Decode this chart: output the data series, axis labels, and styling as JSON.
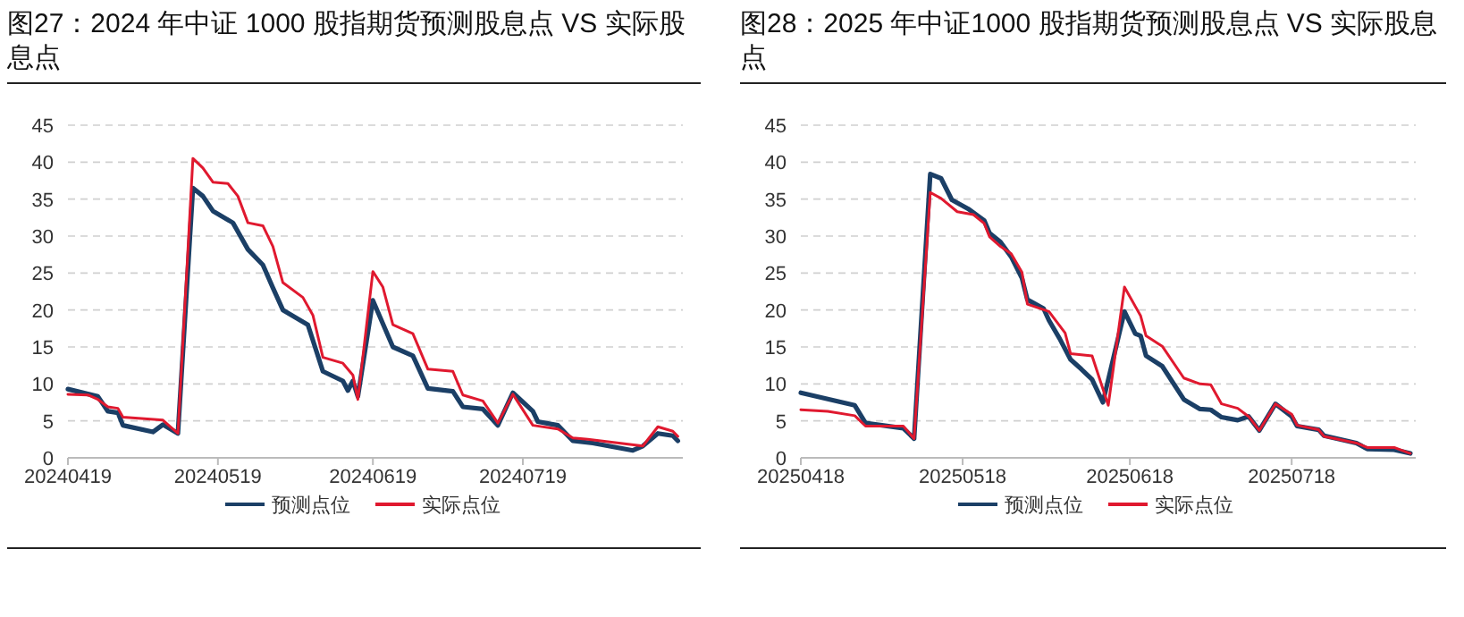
{
  "chart_data": [
    {
      "type": "line",
      "title": "图27：2024 年中证 1000 股指期货预测股息点 VS 实际股息点",
      "xlim": [
        "2024-04-19",
        "2024-08-20"
      ],
      "ylim": [
        0,
        45
      ],
      "yticks": [
        0,
        5,
        10,
        15,
        20,
        25,
        30,
        35,
        40,
        45
      ],
      "xticks": [
        {
          "value": "2024-04-19",
          "label": "20240419"
        },
        {
          "value": "2024-05-19",
          "label": "20240519"
        },
        {
          "value": "2024-06-19",
          "label": "20240619"
        },
        {
          "value": "2024-07-19",
          "label": "20240719"
        }
      ],
      "grid": "y",
      "legend": "bottom",
      "series": [
        {
          "name": "预测点位",
          "color": "#1b3f66",
          "x": [
            "2024-04-19",
            "2024-04-25",
            "2024-04-27",
            "2024-04-29",
            "2024-04-30",
            "2024-05-06",
            "2024-05-08",
            "2024-05-11",
            "2024-05-14",
            "2024-05-16",
            "2024-05-18",
            "2024-05-22",
            "2024-05-25",
            "2024-05-28",
            "2024-05-30",
            "2024-06-01",
            "2024-06-06",
            "2024-06-09",
            "2024-06-13",
            "2024-06-14",
            "2024-06-15",
            "2024-06-16",
            "2024-06-19",
            "2024-06-23",
            "2024-06-27",
            "2024-06-30",
            "2024-07-05",
            "2024-07-07",
            "2024-07-11",
            "2024-07-14",
            "2024-07-17",
            "2024-07-21",
            "2024-07-22",
            "2024-07-26",
            "2024-07-29",
            "2024-08-02",
            "2024-08-10",
            "2024-08-12",
            "2024-08-15",
            "2024-08-18",
            "2024-08-19"
          ],
          "values": [
            9.3,
            8.3,
            6.3,
            6.1,
            4.4,
            3.5,
            4.5,
            3.3,
            36.5,
            35.4,
            33.4,
            31.8,
            28.2,
            26.1,
            23,
            20,
            18,
            11.7,
            10.4,
            9.1,
            10.4,
            8.3,
            21.3,
            15,
            13.8,
            9.4,
            9,
            6.9,
            6.6,
            4.4,
            8.8,
            6.3,
            4.9,
            4.4,
            2.3,
            2.0,
            1.0,
            1.6,
            3.3,
            3.0,
            2.3
          ]
        },
        {
          "name": "实际点位",
          "color": "#e0192f",
          "x": [
            "2024-04-19",
            "2024-04-23",
            "2024-04-25",
            "2024-04-27",
            "2024-04-29",
            "2024-04-30",
            "2024-05-08",
            "2024-05-09",
            "2024-05-11",
            "2024-05-14",
            "2024-05-16",
            "2024-05-18",
            "2024-05-21",
            "2024-05-23",
            "2024-05-25",
            "2024-05-28",
            "2024-05-30",
            "2024-06-01",
            "2024-06-05",
            "2024-06-07",
            "2024-06-09",
            "2024-06-13",
            "2024-06-15",
            "2024-06-16",
            "2024-06-19",
            "2024-06-21",
            "2024-06-23",
            "2024-06-27",
            "2024-06-30",
            "2024-07-05",
            "2024-07-07",
            "2024-07-11",
            "2024-07-14",
            "2024-07-17",
            "2024-07-21",
            "2024-07-26",
            "2024-07-29",
            "2024-08-01",
            "2024-08-12",
            "2024-08-15",
            "2024-08-18",
            "2024-08-19"
          ],
          "values": [
            8.6,
            8.5,
            7.9,
            6.9,
            6.7,
            5.5,
            5.1,
            4.5,
            3.3,
            40.5,
            39.2,
            37.3,
            37.1,
            35.4,
            31.8,
            31.4,
            28.6,
            23.7,
            21.7,
            19.3,
            13.6,
            12.8,
            11.2,
            7.9,
            25.2,
            23.1,
            18,
            16.8,
            12,
            11.7,
            8.5,
            7.7,
            4.7,
            8.6,
            4.4,
            3.9,
            2.7,
            2.5,
            1.6,
            4.2,
            3.6,
            2.9
          ]
        }
      ]
    },
    {
      "type": "line",
      "title": "图28：2025 年中证1000 股指期货预测股息点 VS 实际股息点",
      "xlim": [
        "2025-04-18",
        "2025-08-10"
      ],
      "ylim": [
        0,
        45
      ],
      "yticks": [
        0,
        5,
        10,
        15,
        20,
        25,
        30,
        35,
        40,
        45
      ],
      "xticks": [
        {
          "value": "2025-04-18",
          "label": "20250418"
        },
        {
          "value": "2025-05-18",
          "label": "20250518"
        },
        {
          "value": "2025-06-18",
          "label": "20250618"
        },
        {
          "value": "2025-07-18",
          "label": "20250718"
        }
      ],
      "grid": "y",
      "legend": "bottom",
      "series": [
        {
          "name": "预测点位",
          "color": "#1b3f66",
          "x": [
            "2025-04-18",
            "2025-04-28",
            "2025-04-30",
            "2025-05-07",
            "2025-05-09",
            "2025-05-12",
            "2025-05-14",
            "2025-05-16",
            "2025-05-19",
            "2025-05-22",
            "2025-05-23",
            "2025-05-25",
            "2025-05-27",
            "2025-05-29",
            "2025-05-30",
            "2025-06-02",
            "2025-06-03",
            "2025-06-05",
            "2025-06-07",
            "2025-06-09",
            "2025-06-11",
            "2025-06-13",
            "2025-06-17",
            "2025-06-19",
            "2025-06-20",
            "2025-06-21",
            "2025-06-24",
            "2025-06-28",
            "2025-07-01",
            "2025-07-03",
            "2025-07-05",
            "2025-07-08",
            "2025-07-10",
            "2025-07-12",
            "2025-07-15",
            "2025-07-18",
            "2025-07-19",
            "2025-07-23",
            "2025-07-24",
            "2025-07-30",
            "2025-08-01",
            "2025-08-06",
            "2025-08-09"
          ],
          "values": [
            8.8,
            7.1,
            4.7,
            4.0,
            2.6,
            38.4,
            37.8,
            34.9,
            33.7,
            32.1,
            30.4,
            29.2,
            27.2,
            24.3,
            21.4,
            20.2,
            18.6,
            16.1,
            13.3,
            12.0,
            10.6,
            7.5,
            19.8,
            16.8,
            16.5,
            13.8,
            12.4,
            7.9,
            6.6,
            6.5,
            5.5,
            5.1,
            5.6,
            3.7,
            7.3,
            5.6,
            4.3,
            3.8,
            3.0,
            2.0,
            1.2,
            1.1,
            0.6
          ]
        },
        {
          "name": "实际点位",
          "color": "#e0192f",
          "x": [
            "2025-04-18",
            "2025-04-23",
            "2025-04-28",
            "2025-04-30",
            "2025-05-07",
            "2025-05-09",
            "2025-05-12",
            "2025-05-14",
            "2025-05-17",
            "2025-05-20",
            "2025-05-22",
            "2025-05-23",
            "2025-05-25",
            "2025-05-27",
            "2025-05-29",
            "2025-05-30",
            "2025-06-03",
            "2025-06-06",
            "2025-06-07",
            "2025-06-11",
            "2025-06-14",
            "2025-06-17",
            "2025-06-20",
            "2025-06-21",
            "2025-06-24",
            "2025-06-28",
            "2025-07-01",
            "2025-07-03",
            "2025-07-05",
            "2025-07-08",
            "2025-07-10",
            "2025-07-12",
            "2025-07-15",
            "2025-07-18",
            "2025-07-19",
            "2025-07-23",
            "2025-07-24",
            "2025-07-30",
            "2025-08-01",
            "2025-08-06",
            "2025-08-09"
          ],
          "values": [
            6.5,
            6.3,
            5.7,
            4.3,
            4.3,
            2.6,
            35.9,
            35.1,
            33.3,
            32.9,
            31.7,
            29.9,
            28.6,
            27.6,
            25.1,
            20.8,
            19.8,
            16.9,
            14.1,
            13.8,
            7.1,
            23.1,
            19.2,
            16.5,
            15.1,
            10.8,
            10.0,
            9.9,
            7.3,
            6.7,
            5.6,
            3.7,
            7.3,
            5.9,
            4.4,
            3.8,
            2.9,
            2.0,
            1.4,
            1.4,
            0.6
          ]
        }
      ]
    }
  ]
}
